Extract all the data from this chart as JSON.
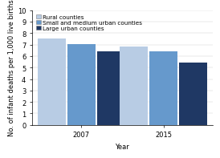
{
  "years": [
    "2007",
    "2015"
  ],
  "categories": [
    "Rural counties",
    "Small and medium urban counties",
    "Large urban counties"
  ],
  "values": {
    "2007": [
      7.5,
      7.05,
      6.4
    ],
    "2015": [
      6.8,
      6.4,
      5.4
    ]
  },
  "colors": [
    "#b8cce4",
    "#6699cc",
    "#1f3864"
  ],
  "xlabel": "Year",
  "ylabel": "No. of infant deaths per 1,000 live births",
  "ylim": [
    0,
    10
  ],
  "yticks": [
    0,
    1,
    2,
    3,
    4,
    5,
    6,
    7,
    8,
    9,
    10
  ],
  "bar_width": 0.18,
  "background_color": "#ffffff",
  "legend_fontsize": 5.2,
  "axis_fontsize": 6.0,
  "tick_fontsize": 6.0
}
